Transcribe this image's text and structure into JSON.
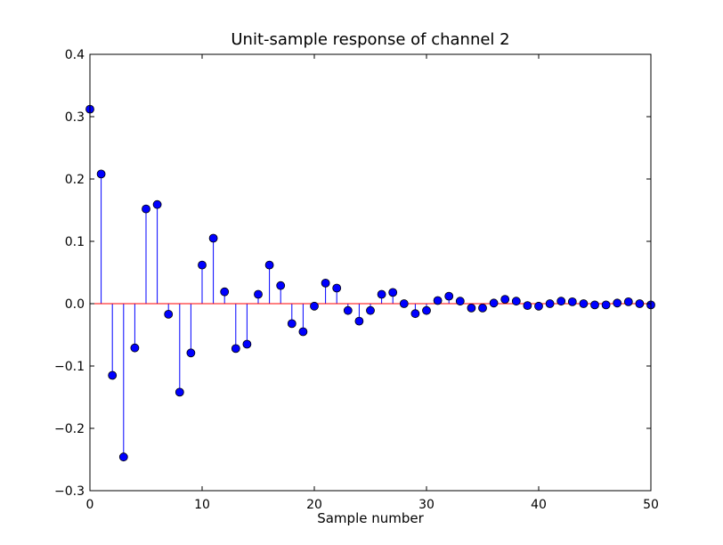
{
  "chart_data": {
    "type": "stem",
    "title": "Unit-sample response of channel 2",
    "xlabel": "Sample number",
    "ylabel": "",
    "xlim": [
      0,
      50
    ],
    "ylim": [
      -0.3,
      0.4
    ],
    "xticks": [
      0,
      10,
      20,
      30,
      40,
      50
    ],
    "xtick_labels": [
      "0",
      "10",
      "20",
      "30",
      "40",
      "50"
    ],
    "yticks": [
      -0.3,
      -0.2,
      -0.1,
      0.0,
      0.1,
      0.2,
      0.3,
      0.4
    ],
    "ytick_labels": [
      "−0.3",
      "−0.2",
      "−0.1",
      "0.0",
      "0.1",
      "0.2",
      "0.3",
      "0.4"
    ],
    "grid": false,
    "legend": "none",
    "colors": {
      "stem": "#0000ff",
      "marker": "#0000ff",
      "marker_edge": "#000000",
      "baseline": "#ff0000"
    },
    "x": [
      0,
      1,
      2,
      3,
      4,
      5,
      6,
      7,
      8,
      9,
      10,
      11,
      12,
      13,
      14,
      15,
      16,
      17,
      18,
      19,
      20,
      21,
      22,
      23,
      24,
      25,
      26,
      27,
      28,
      29,
      30,
      31,
      32,
      33,
      34,
      35,
      36,
      37,
      38,
      39,
      40,
      41,
      42,
      43,
      44,
      45,
      46,
      47,
      48,
      49,
      50
    ],
    "values": [
      0.312,
      0.208,
      -0.115,
      -0.246,
      -0.071,
      0.152,
      0.159,
      -0.017,
      -0.142,
      -0.079,
      0.062,
      0.105,
      0.019,
      -0.072,
      -0.065,
      0.015,
      0.062,
      0.029,
      -0.032,
      -0.045,
      -0.004,
      0.033,
      0.025,
      -0.011,
      -0.028,
      -0.011,
      0.015,
      0.018,
      0.0,
      -0.016,
      -0.011,
      0.005,
      0.012,
      0.004,
      -0.007,
      -0.007,
      0.001,
      0.007,
      0.004,
      -0.003,
      -0.004,
      0.0,
      0.004,
      0.003,
      0.0,
      -0.002,
      -0.002,
      0.001,
      0.003,
      0.0,
      -0.002
    ]
  }
}
